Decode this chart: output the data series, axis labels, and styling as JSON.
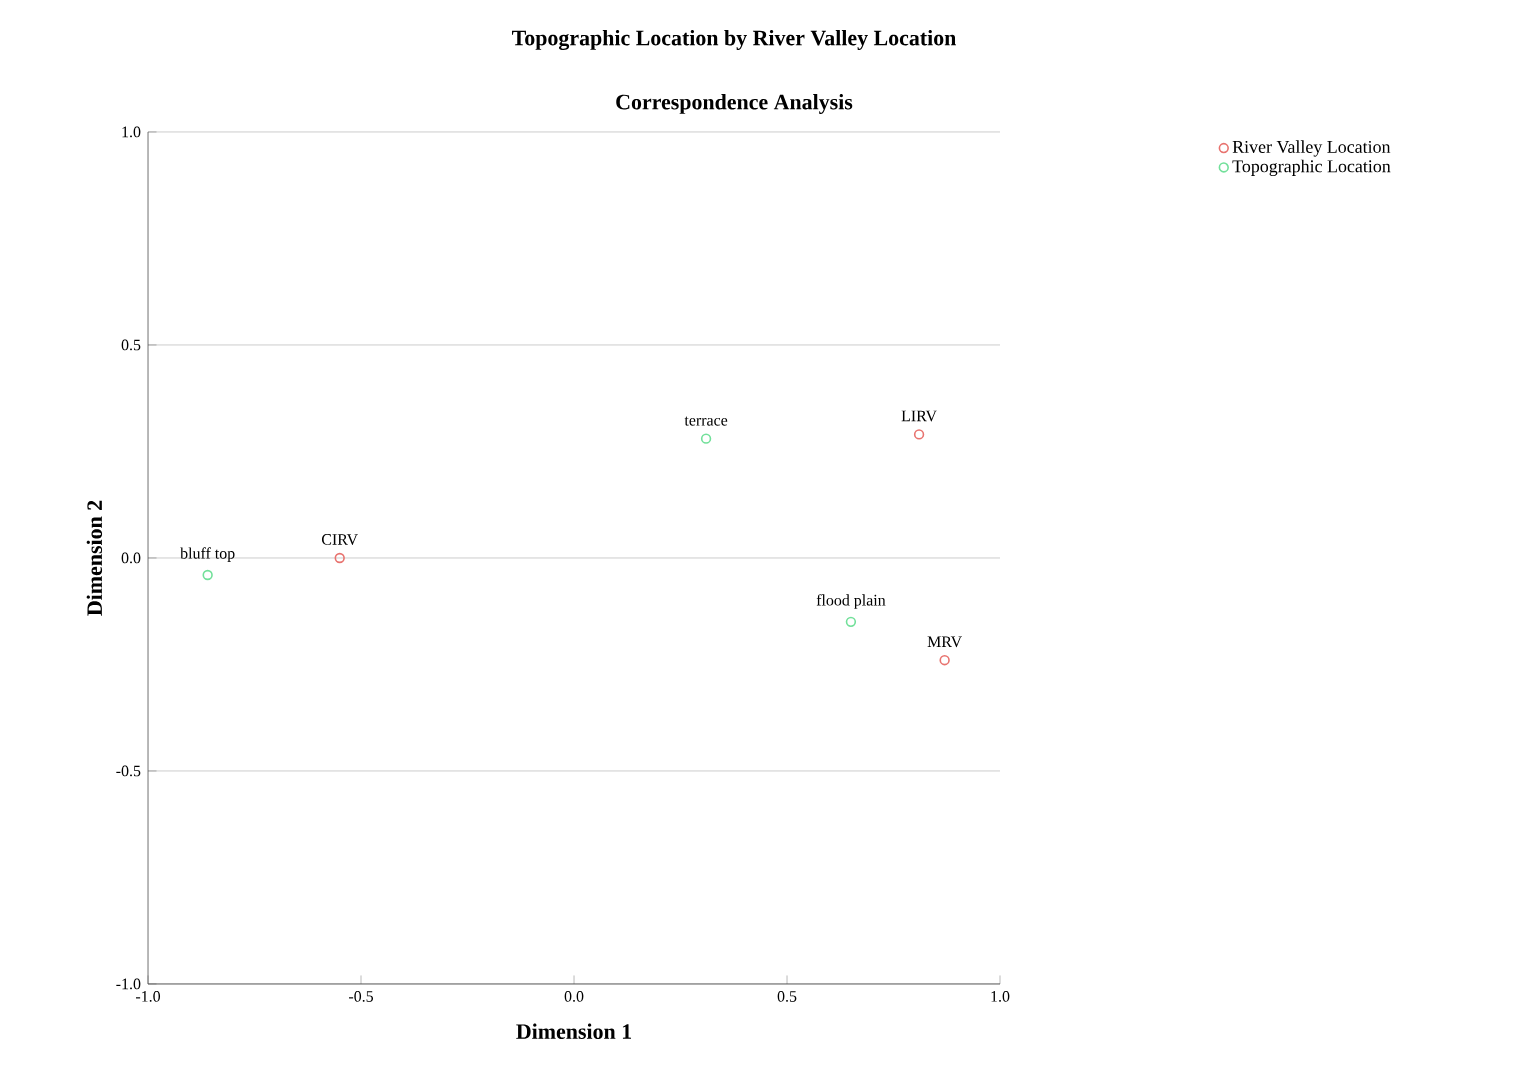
{
  "chart_data": {
    "type": "scatter",
    "title": "Topographic Location by River Valley Location",
    "subtitle": "Correspondence Analysis",
    "xlabel": "Dimension 1",
    "ylabel": "Dimension 2",
    "xlim": [
      -1.0,
      1.0
    ],
    "ylim": [
      -1.0,
      1.0
    ],
    "xticks": [
      {
        "value": -1.0,
        "label": "-1.0"
      },
      {
        "value": -0.5,
        "label": "-0.5"
      },
      {
        "value": 0.0,
        "label": "0.0"
      },
      {
        "value": 0.5,
        "label": "0.5"
      },
      {
        "value": 1.0,
        "label": "1.0"
      }
    ],
    "yticks": [
      {
        "value": -1.0,
        "label": "-1.0"
      },
      {
        "value": -0.5,
        "label": "-0.5"
      },
      {
        "value": 0.0,
        "label": "0.0"
      },
      {
        "value": 0.5,
        "label": "0.5"
      },
      {
        "value": 1.0,
        "label": "1.0"
      }
    ],
    "grid": "y",
    "legend": "top right",
    "marker": "circle",
    "series": [
      {
        "name": "River Valley Location",
        "color": "#e8736f",
        "x": [
          -0.55,
          0.81,
          0.87
        ],
        "values": [
          0.0,
          0.29,
          -0.24
        ]
      },
      {
        "name": "Topographic Location",
        "color": "#72e09a",
        "x": [
          -0.86,
          0.31,
          0.65
        ],
        "values": [
          -0.04,
          0.28,
          -0.15
        ]
      }
    ],
    "annotations": [
      {
        "text": "CIRV",
        "x": -0.55,
        "y": 0.0
      },
      {
        "text": "LIRV",
        "x": 0.81,
        "y": 0.29
      },
      {
        "text": "MRV",
        "x": 0.87,
        "y": -0.24
      },
      {
        "text": "bluff top",
        "x": -0.86,
        "y": -0.04
      },
      {
        "text": "terrace",
        "x": 0.31,
        "y": 0.28
      },
      {
        "text": "flood plain",
        "x": 0.65,
        "y": -0.15
      }
    ]
  }
}
